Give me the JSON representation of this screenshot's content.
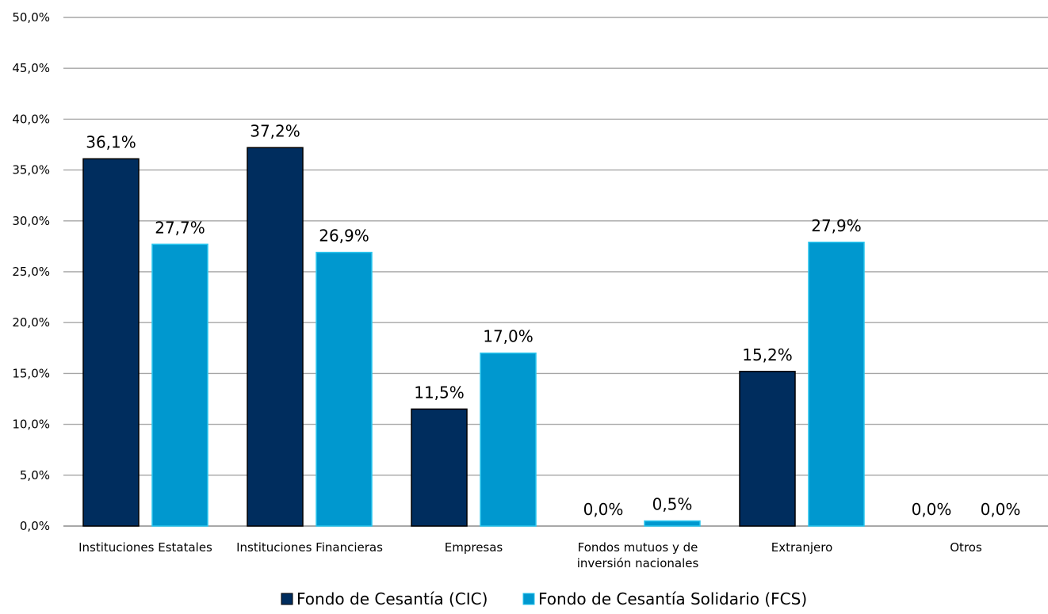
{
  "chart_data": {
    "type": "bar",
    "categories": [
      [
        "Instituciones Estatales"
      ],
      [
        "Instituciones Financieras"
      ],
      [
        "Empresas"
      ],
      [
        "Fondos mutuos y de",
        "inversión nacionales"
      ],
      [
        "Extranjero"
      ],
      [
        "Otros"
      ]
    ],
    "series": [
      {
        "name": "Fondo de Cesantía (CIC)",
        "color": "#002D5E",
        "values": [
          36.1,
          37.2,
          11.5,
          0.0,
          15.2,
          0.0
        ],
        "labels": [
          "36,1%",
          "37,2%",
          "11,5%",
          "0,0%",
          "15,2%",
          "0,0%"
        ]
      },
      {
        "name": "Fondo de Cesantía Solidario (FCS)",
        "color": "#0098CF",
        "border": "#2BC6EE",
        "values": [
          27.7,
          26.9,
          17.0,
          0.5,
          27.9,
          0.0
        ],
        "labels": [
          "27,7%",
          "26,9%",
          "17,0%",
          "0,5%",
          "27,9%",
          "0,0%"
        ]
      }
    ],
    "ylim": [
      0,
      50
    ],
    "yticks": [
      0,
      5,
      10,
      15,
      20,
      25,
      30,
      35,
      40,
      45,
      50
    ],
    "ytick_labels": [
      "0,0%",
      "5,0%",
      "10,0%",
      "15,0%",
      "20,0%",
      "25,0%",
      "30,0%",
      "35,0%",
      "40,0%",
      "45,0%",
      "50,0%"
    ],
    "grid": true,
    "grid_color": "#A6A6A6",
    "legend_position": "bottom"
  }
}
